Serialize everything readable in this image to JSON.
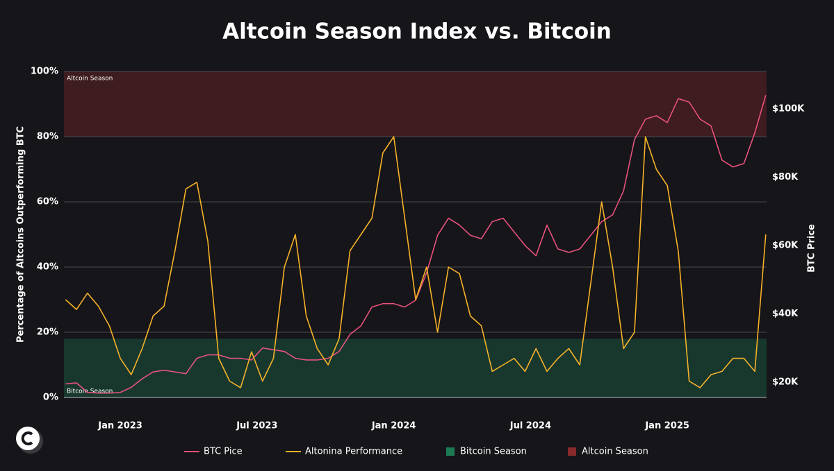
{
  "chart_data": {
    "type": "line",
    "title": "Altcoin Season Index vs. Bitcoin",
    "y_label": "Percentage of Altcoins Outperforming BTC",
    "y2_label": "BTC Price",
    "x": [
      2022.8,
      2022.84,
      2022.88,
      2022.92,
      2022.96,
      2023.0,
      2023.04,
      2023.08,
      2023.12,
      2023.16,
      2023.2,
      2023.24,
      2023.28,
      2023.32,
      2023.36,
      2023.4,
      2023.44,
      2023.48,
      2023.52,
      2023.56,
      2023.6,
      2023.64,
      2023.68,
      2023.72,
      2023.76,
      2023.8,
      2023.84,
      2023.88,
      2023.92,
      2023.96,
      2024.0,
      2024.04,
      2024.08,
      2024.12,
      2024.16,
      2024.2,
      2024.24,
      2024.28,
      2024.32,
      2024.36,
      2024.4,
      2024.44,
      2024.48,
      2024.52,
      2024.56,
      2024.6,
      2024.64,
      2024.68,
      2024.72,
      2024.76,
      2024.8,
      2024.84,
      2024.88,
      2024.92,
      2024.96,
      2025.0,
      2025.04,
      2025.08,
      2025.12,
      2025.16,
      2025.2,
      2025.24,
      2025.28,
      2025.32,
      2025.36
    ],
    "xlim": [
      2022.794,
      2025.363
    ],
    "xticks": [
      {
        "value": 2023.0,
        "label": "Jan 2023"
      },
      {
        "value": 2023.5,
        "label": "Jul 2023"
      },
      {
        "value": 2024.0,
        "label": "Jan 2024"
      },
      {
        "value": 2024.5,
        "label": "Jul 2024"
      },
      {
        "value": 2025.0,
        "label": "Jan 2025"
      }
    ],
    "ylim": [
      0,
      100
    ],
    "yticks": [
      {
        "value": 0,
        "label": "0%"
      },
      {
        "value": 20,
        "label": "20%"
      },
      {
        "value": 40,
        "label": "40%"
      },
      {
        "value": 60,
        "label": "60%"
      },
      {
        "value": 80,
        "label": "80%"
      },
      {
        "value": 100,
        "label": "100%"
      }
    ],
    "y2lim": [
      15530,
      110960
    ],
    "y2ticks": [
      {
        "value": 20000,
        "label": "$20K"
      },
      {
        "value": 40000,
        "label": "$40K"
      },
      {
        "value": 60000,
        "label": "$60K"
      },
      {
        "value": 80000,
        "label": "$80K"
      },
      {
        "value": 100000,
        "label": "$100K"
      }
    ],
    "grid": true,
    "bands": [
      {
        "name": "Bitcoin Season",
        "from": 0,
        "to": 18,
        "color": "#1c7a55"
      },
      {
        "name": "Altcoin Season",
        "from": 80,
        "to": 100,
        "color": "#8a2a2c"
      }
    ],
    "series": [
      {
        "name": "BTC Pice",
        "color": "#e8527c",
        "axis": "y2",
        "values": [
          19500,
          19800,
          17000,
          16800,
          16800,
          17000,
          18500,
          21000,
          23000,
          23500,
          23000,
          22500,
          27000,
          28000,
          28000,
          27000,
          27000,
          26500,
          30000,
          29500,
          29000,
          27000,
          26500,
          26500,
          27000,
          29000,
          34000,
          36500,
          42000,
          43000,
          43000,
          42000,
          44000,
          52000,
          63000,
          68000,
          66000,
          63000,
          62000,
          67000,
          68000,
          64000,
          60000,
          57000,
          66000,
          59000,
          58000,
          59000,
          63000,
          67000,
          69000,
          76000,
          91000,
          97000,
          98000,
          96000,
          103000,
          102000,
          97000,
          95000,
          85000,
          83000,
          84000,
          93000,
          104000
        ]
      },
      {
        "name": "Altonina Performance",
        "color": "#f6b229",
        "values": [
          30,
          27,
          32,
          28,
          22,
          12,
          7,
          15,
          25,
          28,
          45,
          64,
          66,
          48,
          12,
          5,
          3,
          14,
          5,
          12,
          40,
          50,
          25,
          15,
          10,
          18,
          45,
          50,
          55,
          75,
          80,
          55,
          30,
          40,
          20,
          40,
          38,
          25,
          22,
          8,
          10,
          12,
          8,
          15,
          8,
          12,
          15,
          10,
          35,
          60,
          40,
          15,
          20,
          80,
          70,
          65,
          45,
          5,
          3,
          7,
          8,
          12,
          12,
          8,
          50
        ]
      }
    ]
  }
}
